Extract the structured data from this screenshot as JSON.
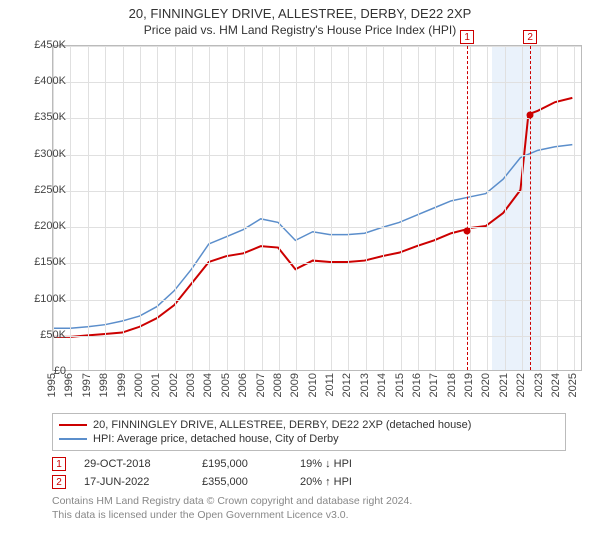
{
  "title": "20, FINNINGLEY DRIVE, ALLESTREE, DERBY, DE22 2XP",
  "subtitle": "Price paid vs. HM Land Registry's House Price Index (HPI)",
  "chart": {
    "type": "line",
    "background_color": "#ffffff",
    "grid_color": "#e0e0e0",
    "border_color": "#bbbbbb",
    "xlim": [
      1995,
      2025.5
    ],
    "ylim": [
      0,
      450000
    ],
    "ytick_step": 50000,
    "yticks": [
      "£0",
      "£50K",
      "£100K",
      "£150K",
      "£200K",
      "£250K",
      "£300K",
      "£350K",
      "£400K",
      "£450K"
    ],
    "xticks": [
      1995,
      1996,
      1997,
      1998,
      1999,
      2000,
      2001,
      2002,
      2003,
      2004,
      2005,
      2006,
      2007,
      2008,
      2009,
      2010,
      2011,
      2012,
      2013,
      2014,
      2015,
      2016,
      2017,
      2018,
      2019,
      2020,
      2021,
      2022,
      2023,
      2024,
      2025
    ],
    "tick_fontsize": 11,
    "marker_band": {
      "start": 2020.25,
      "end": 2023.0,
      "color": "#eaf2fb"
    },
    "event_markers": [
      {
        "index": "1",
        "x": 2018.83,
        "y": 195000
      },
      {
        "index": "2",
        "x": 2022.46,
        "y": 355000
      }
    ],
    "series": [
      {
        "name": "property",
        "label": "20, FINNINGLEY DRIVE, ALLESTREE, DERBY, DE22 2XP (detached house)",
        "color": "#cc0000",
        "line_width": 2,
        "points": [
          [
            1995,
            46000
          ],
          [
            1996,
            46000
          ],
          [
            1997,
            48000
          ],
          [
            1998,
            50000
          ],
          [
            1999,
            52000
          ],
          [
            2000,
            60000
          ],
          [
            2001,
            72000
          ],
          [
            2002,
            90000
          ],
          [
            2003,
            120000
          ],
          [
            2004,
            150000
          ],
          [
            2005,
            158000
          ],
          [
            2006,
            162000
          ],
          [
            2007,
            172000
          ],
          [
            2008,
            170000
          ],
          [
            2009,
            140000
          ],
          [
            2010,
            152000
          ],
          [
            2011,
            150000
          ],
          [
            2012,
            150000
          ],
          [
            2013,
            152000
          ],
          [
            2014,
            158000
          ],
          [
            2015,
            163000
          ],
          [
            2016,
            172000
          ],
          [
            2017,
            180000
          ],
          [
            2018,
            190000
          ],
          [
            2018.83,
            195000
          ],
          [
            2019,
            197000
          ],
          [
            2020,
            200000
          ],
          [
            2021,
            218000
          ],
          [
            2022,
            250000
          ],
          [
            2022.46,
            355000
          ],
          [
            2023,
            360000
          ],
          [
            2024,
            372000
          ],
          [
            2025,
            378000
          ]
        ]
      },
      {
        "name": "hpi",
        "label": "HPI: Average price, detached house, City of Derby",
        "color": "#5b8ecb",
        "line_width": 1.5,
        "points": [
          [
            1995,
            58000
          ],
          [
            1996,
            58000
          ],
          [
            1997,
            60000
          ],
          [
            1998,
            63000
          ],
          [
            1999,
            68000
          ],
          [
            2000,
            75000
          ],
          [
            2001,
            88000
          ],
          [
            2002,
            110000
          ],
          [
            2003,
            140000
          ],
          [
            2004,
            175000
          ],
          [
            2005,
            185000
          ],
          [
            2006,
            195000
          ],
          [
            2007,
            210000
          ],
          [
            2008,
            205000
          ],
          [
            2009,
            180000
          ],
          [
            2010,
            192000
          ],
          [
            2011,
            188000
          ],
          [
            2012,
            188000
          ],
          [
            2013,
            190000
          ],
          [
            2014,
            198000
          ],
          [
            2015,
            205000
          ],
          [
            2016,
            215000
          ],
          [
            2017,
            225000
          ],
          [
            2018,
            235000
          ],
          [
            2019,
            240000
          ],
          [
            2020,
            245000
          ],
          [
            2021,
            265000
          ],
          [
            2022,
            295000
          ],
          [
            2023,
            305000
          ],
          [
            2024,
            310000
          ],
          [
            2025,
            313000
          ]
        ]
      }
    ]
  },
  "sales": [
    {
      "index": "1",
      "date": "29-OCT-2018",
      "price": "£195,000",
      "comparison": "19% ↓ HPI"
    },
    {
      "index": "2",
      "date": "17-JUN-2022",
      "price": "£355,000",
      "comparison": "20% ↑ HPI"
    }
  ],
  "attribution": {
    "line1": "Contains HM Land Registry data © Crown copyright and database right 2024.",
    "line2": "This data is licensed under the Open Government Licence v3.0."
  }
}
